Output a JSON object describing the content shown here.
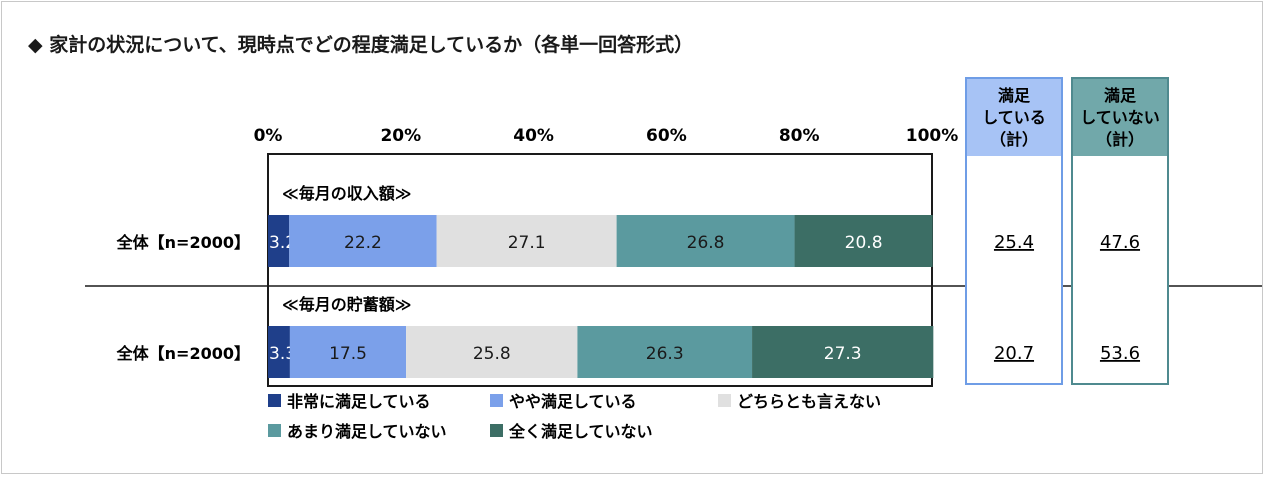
{
  "title": "◆ 家計の状況について、現時点でどの程度満足しているか（各単一回答形式）",
  "colors": {
    "very_satisfied": "#1f3f8a",
    "somewhat_satisfied": "#7ba0ea",
    "neutral": "#e0e0e0",
    "not_very": "#5b9a9f",
    "not_at_all": "#3c6e65",
    "col1_header_bg": "#a7c3f5",
    "col1_border": "#6f9de6",
    "col2_header_bg": "#71a8aa",
    "col2_border": "#4f8a8f"
  },
  "chart_data": {
    "type": "bar",
    "orientation": "horizontal-stacked-100",
    "xlim": [
      0,
      100
    ],
    "ticks": [
      "0%",
      "20%",
      "40%",
      "60%",
      "80%",
      "100%"
    ],
    "series": [
      {
        "name": "非常に満足している",
        "values": [
          3.2,
          3.3
        ]
      },
      {
        "name": "やや満足している",
        "values": [
          22.2,
          17.5
        ]
      },
      {
        "name": "どちらとも言えない",
        "values": [
          27.1,
          25.8
        ]
      },
      {
        "name": "あまり満足していない",
        "values": [
          26.8,
          26.3
        ]
      },
      {
        "name": "全く満足していない",
        "values": [
          20.8,
          27.3
        ]
      }
    ],
    "groups": [
      {
        "section_label": "≪毎月の収入額≫",
        "row_label": "全体【n=2000】"
      },
      {
        "section_label": "≪毎月の貯蓄額≫",
        "row_label": "全体【n=2000】"
      }
    ],
    "summary_columns": [
      {
        "header": [
          "満足",
          "している",
          "（計）"
        ],
        "values": [
          "25.4",
          "20.7"
        ]
      },
      {
        "header": [
          "満足",
          "していない",
          "（計）"
        ],
        "values": [
          "47.6",
          "53.6"
        ]
      }
    ],
    "legend": [
      [
        "非常に満足している",
        "やや満足している",
        "どちらとも言えない"
      ],
      [
        "あまり満足していない",
        "全く満足していない"
      ]
    ]
  }
}
